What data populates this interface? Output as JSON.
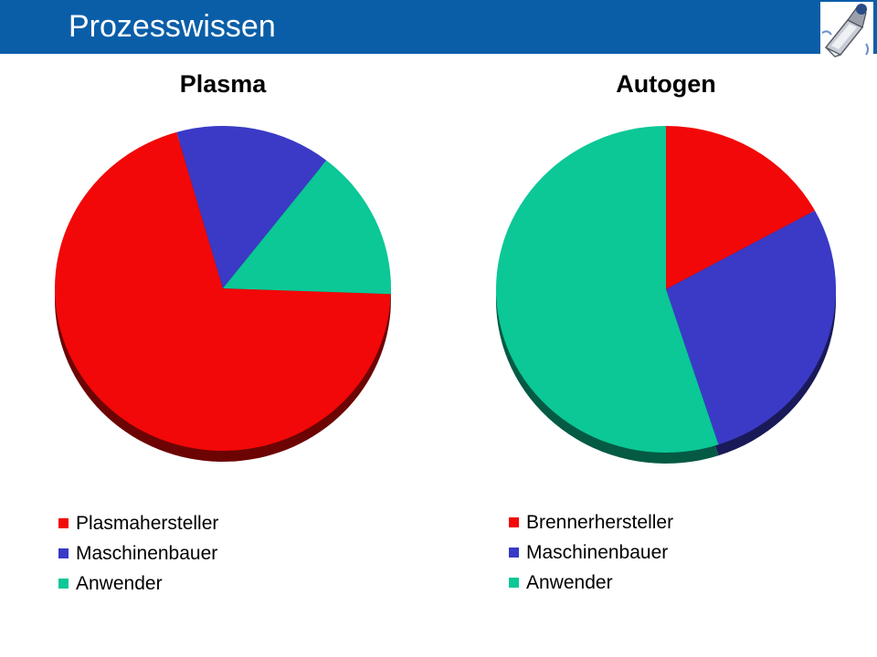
{
  "header": {
    "title": "Prozesswissen",
    "background": "#0a5ea8",
    "logo_icon": "gas-cylinder-logo-icon"
  },
  "chart_data": [
    {
      "type": "pie",
      "title": "Plasma",
      "categories": [
        "Plasmahersteller",
        "Maschinenbauer",
        "Anwender"
      ],
      "values": [
        70,
        15,
        15
      ],
      "colors": [
        "#f20808",
        "#3a3ac6",
        "#0bc896"
      ],
      "legend": "bottom"
    },
    {
      "type": "pie",
      "title": "Autogen",
      "categories": [
        "Brennerhersteller",
        "Maschinenbauer",
        "Anwender"
      ],
      "values": [
        17,
        28,
        55
      ],
      "colors": [
        "#f20808",
        "#3a3ac6",
        "#0bc896"
      ],
      "legend": "bottom"
    }
  ]
}
